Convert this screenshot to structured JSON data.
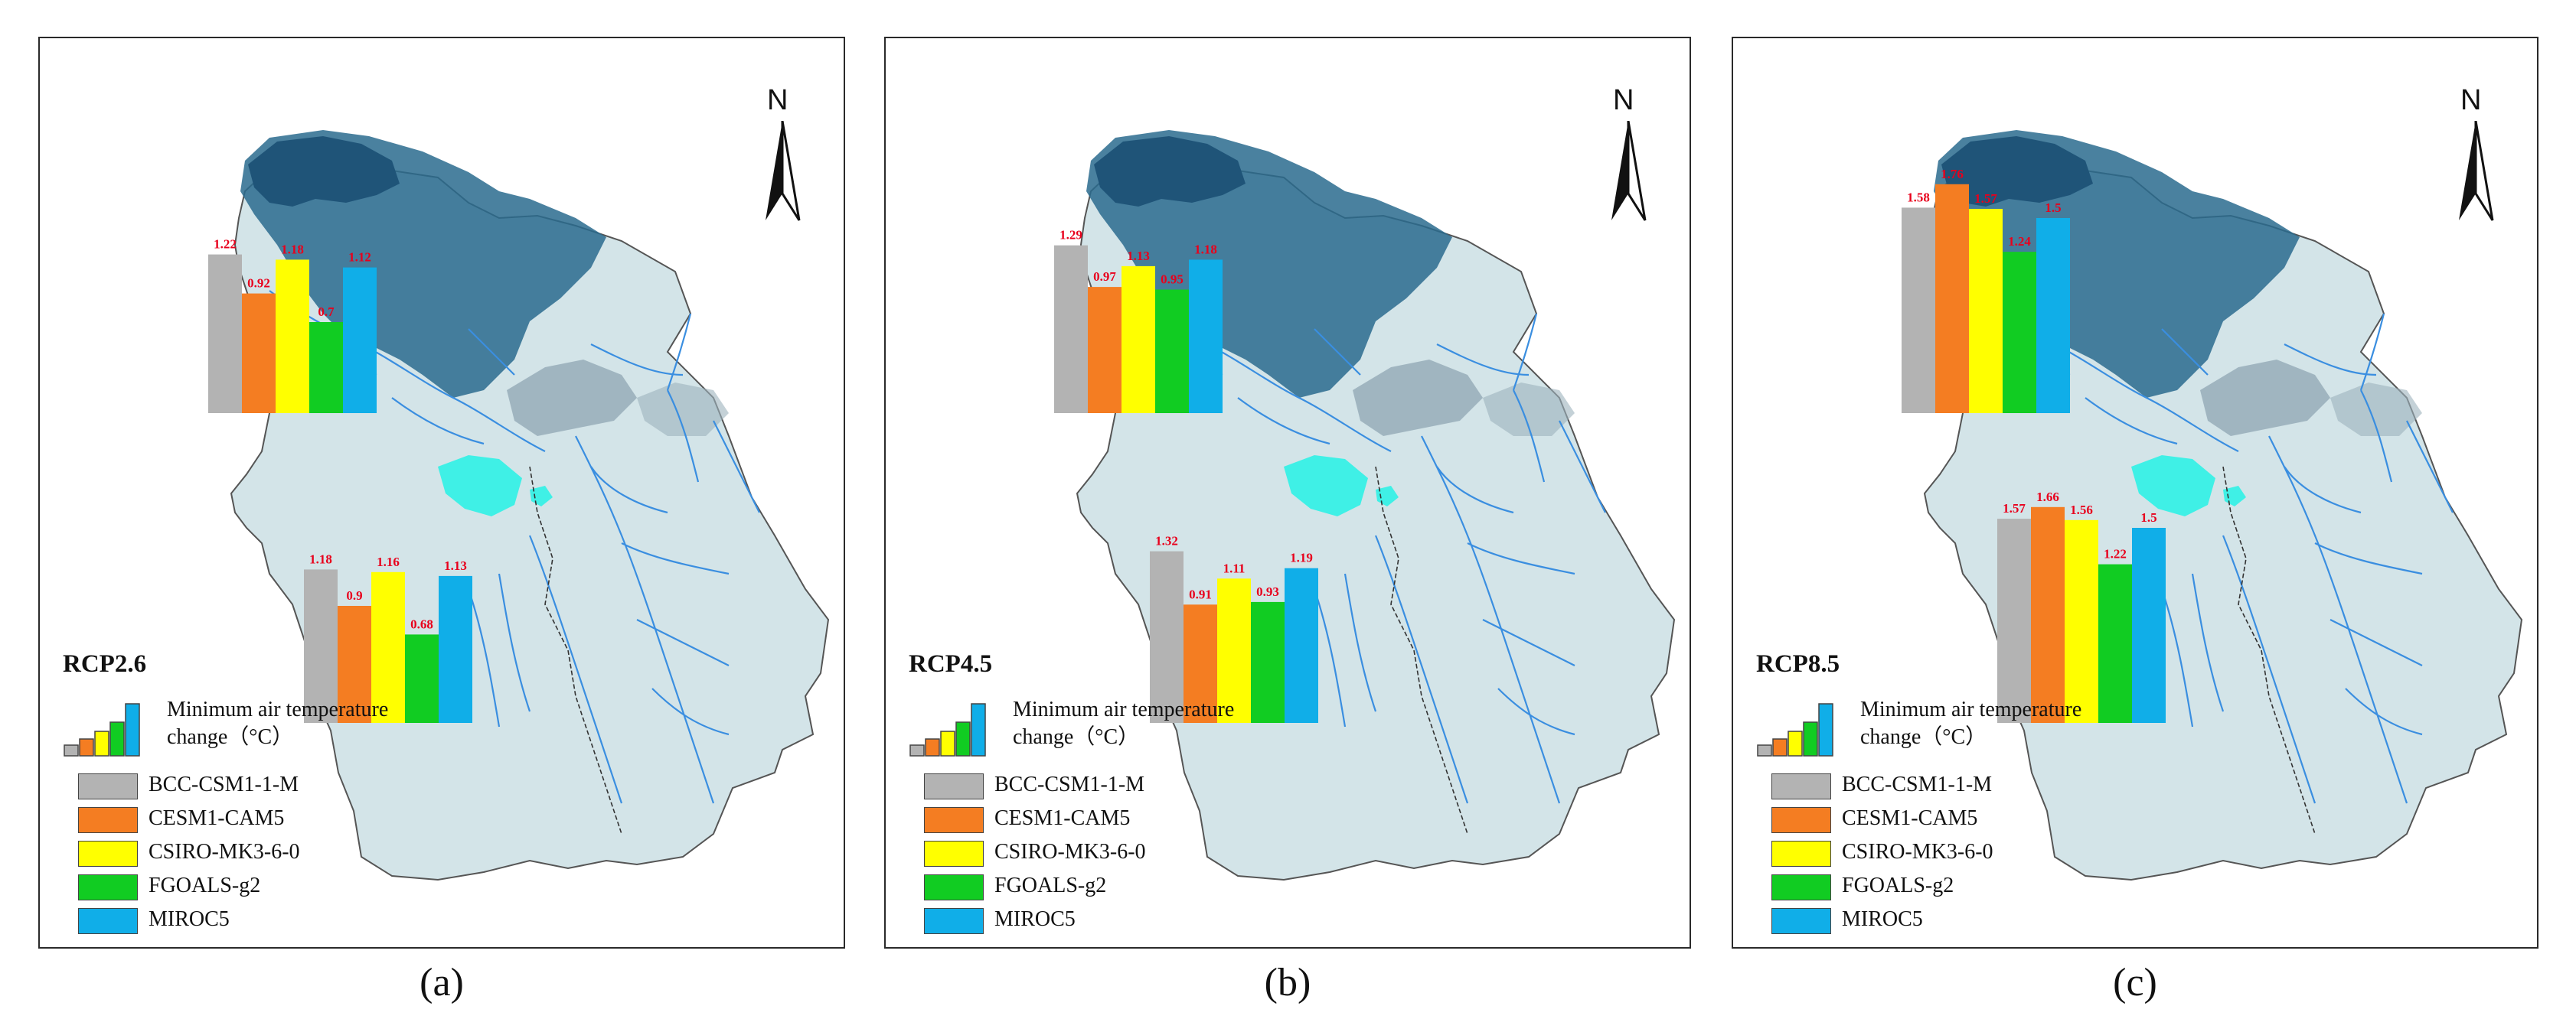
{
  "colors": {
    "BCC-CSM1-1-M": "#b3b3b3",
    "CESM1-CAM5": "#f47d22",
    "CSIRO-MK3-6-0": "#ffff00",
    "FGOALS-g2": "#11cc22",
    "MIROC5": "#10aee8",
    "bar_label": "#e8001c",
    "basin_fill": "#d3e4e8",
    "mountain_dark": "#2a6b8e",
    "river": "#3a8ee0",
    "lake": "#3ff0e6"
  },
  "icons": {
    "north_arrow": "north-arrow-icon",
    "legend_bars": "bar-chart-legend-icon"
  },
  "north_label": "N",
  "legend": {
    "title_line1": "Minimum air  temperature",
    "title_line2": "change（°C）",
    "items": [
      "BCC-CSM1-1-M",
      "CESM1-CAM5",
      "CSIRO-MK3-6-0",
      "FGOALS-g2",
      "MIROC5"
    ]
  },
  "panels": [
    {
      "scenario": "RCP2.6",
      "caption": "(a)",
      "chart_data": [
        {
          "type": "bar",
          "region": "upper",
          "categories": [
            "BCC-CSM1-1-M",
            "CESM1-CAM5",
            "CSIRO-MK3-6-0",
            "FGOALS-g2",
            "MIROC5"
          ],
          "values": [
            1.22,
            0.92,
            1.18,
            0.7,
            1.12
          ],
          "labels": [
            "1.22",
            "0.92",
            "1.18",
            "0.7",
            "1.12"
          ]
        },
        {
          "type": "bar",
          "region": "lower",
          "categories": [
            "BCC-CSM1-1-M",
            "CESM1-CAM5",
            "CSIRO-MK3-6-0",
            "FGOALS-g2",
            "MIROC5"
          ],
          "values": [
            1.18,
            0.9,
            1.16,
            0.68,
            1.13
          ],
          "labels": [
            "1.18",
            "0.9",
            "1.16",
            "0.68",
            "1.13"
          ]
        }
      ]
    },
    {
      "scenario": "RCP4.5",
      "caption": "(b)",
      "chart_data": [
        {
          "type": "bar",
          "region": "upper",
          "categories": [
            "BCC-CSM1-1-M",
            "CESM1-CAM5",
            "CSIRO-MK3-6-0",
            "FGOALS-g2",
            "MIROC5"
          ],
          "values": [
            1.29,
            0.97,
            1.13,
            0.95,
            1.18
          ],
          "labels": [
            "1.29",
            "0.97",
            "1.13",
            "0.95",
            "1.18"
          ]
        },
        {
          "type": "bar",
          "region": "lower",
          "categories": [
            "BCC-CSM1-1-M",
            "CESM1-CAM5",
            "CSIRO-MK3-6-0",
            "FGOALS-g2",
            "MIROC5"
          ],
          "values": [
            1.32,
            0.91,
            1.11,
            0.93,
            1.19
          ],
          "labels": [
            "1.32",
            "0.91",
            "1.11",
            "0.93",
            "1.19"
          ]
        }
      ]
    },
    {
      "scenario": "RCP8.5",
      "caption": "(c)",
      "chart_data": [
        {
          "type": "bar",
          "region": "upper",
          "categories": [
            "BCC-CSM1-1-M",
            "CESM1-CAM5",
            "CSIRO-MK3-6-0",
            "FGOALS-g2",
            "MIROC5"
          ],
          "values": [
            1.58,
            1.76,
            1.57,
            1.24,
            1.5
          ],
          "labels": [
            "1.58",
            "1.76",
            "1.57",
            "1.24",
            "1.5"
          ]
        },
        {
          "type": "bar",
          "region": "lower",
          "categories": [
            "BCC-CSM1-1-M",
            "CESM1-CAM5",
            "CSIRO-MK3-6-0",
            "FGOALS-g2",
            "MIROC5"
          ],
          "values": [
            1.57,
            1.66,
            1.56,
            1.22,
            1.5
          ],
          "labels": [
            "1.57",
            "1.66",
            "1.56",
            "1.22",
            "1.5"
          ]
        }
      ]
    }
  ]
}
